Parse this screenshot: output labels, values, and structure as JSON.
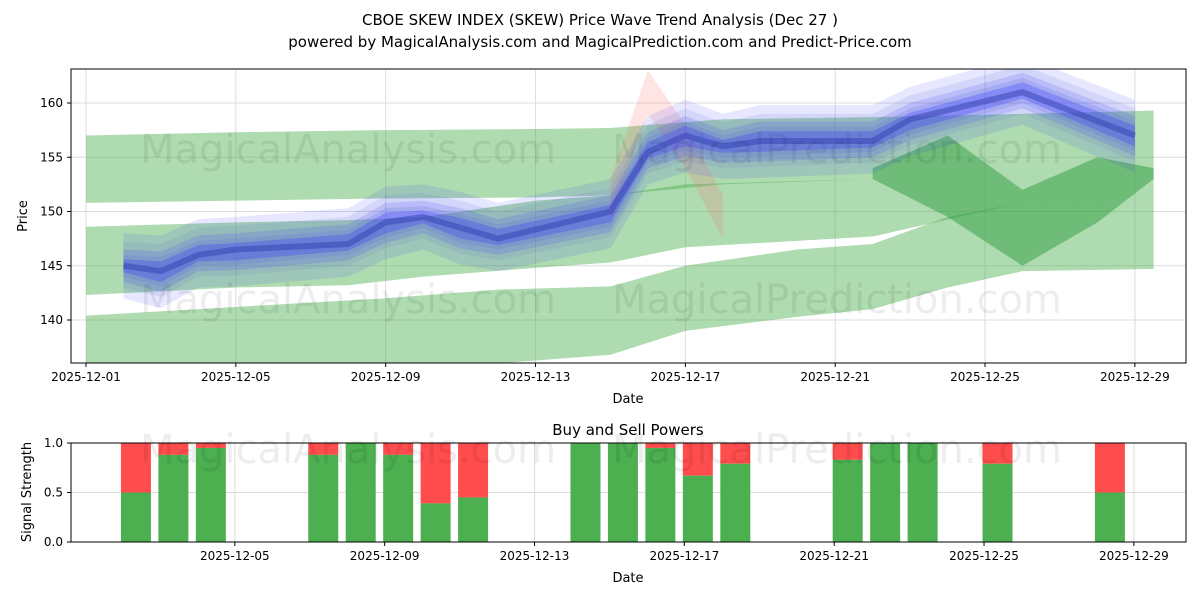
{
  "chart_data": [
    {
      "type": "area",
      "title": "CBOE SKEW INDEX (SKEW) Price Wave Trend Analysis (Dec 27 )",
      "subtitle": "powered by MagicalAnalysis.com and MagicalPrediction.com and Predict-Price.com",
      "xlabel": "Date",
      "ylabel": "Price",
      "xlim": [
        "2025-11-30.6",
        "2025-12-30.1"
      ],
      "ylim": [
        136,
        163.1
      ],
      "grid": true,
      "xticks": [
        "2025-12-01",
        "2025-12-05",
        "2025-12-09",
        "2025-12-13",
        "2025-12-17",
        "2025-12-21",
        "2025-12-25",
        "2025-12-29"
      ],
      "yticks": [
        140,
        145,
        150,
        155,
        160
      ],
      "watermarks": [
        "MagicalAnalysis.com",
        "MagicalPrediction.com"
      ],
      "colors": {
        "band": "#4caf50",
        "price": "#3b3bff",
        "alt": "#ff6b6b"
      },
      "green_bands": [
        {
          "x": [
            1,
            5,
            9,
            13,
            15,
            18,
            22,
            26,
            29.5
          ],
          "low": [
            150.8,
            151,
            151.2,
            151.3,
            151.5,
            152.5,
            153,
            153,
            153
          ],
          "high": [
            157,
            157.3,
            157.5,
            157.6,
            157.7,
            158.5,
            158.7,
            159,
            159.3
          ]
        },
        {
          "x": [
            1,
            5,
            8,
            10,
            13,
            15,
            17,
            22,
            26,
            29.5
          ],
          "low": [
            142.3,
            143,
            143.2,
            144,
            144.8,
            145.3,
            146.7,
            147.7,
            150.8,
            151
          ],
          "high": [
            148.6,
            149,
            149.2,
            149.5,
            151,
            151.5,
            152.5,
            153,
            153,
            153
          ]
        },
        {
          "x": [
            1,
            5,
            9,
            12,
            15,
            17,
            20,
            22,
            24,
            26,
            29.5
          ],
          "low": [
            136,
            135.5,
            135.5,
            136,
            136.8,
            139,
            140.3,
            141,
            143,
            144.5,
            144.7
          ],
          "high": [
            140.4,
            141.2,
            142,
            142.8,
            143.1,
            145,
            146.5,
            147,
            149.5,
            150.8,
            151
          ]
        }
      ],
      "price": {
        "x": [
          2,
          3,
          4,
          5,
          8,
          9,
          10,
          11,
          12,
          15,
          16,
          17,
          18,
          19,
          22,
          23,
          26,
          29
        ],
        "y": [
          145,
          144.5,
          146,
          146.5,
          147,
          149,
          149.5,
          148.5,
          147.5,
          150,
          155.5,
          157,
          156,
          156.5,
          156.5,
          158.5,
          161,
          157
        ]
      },
      "alt_peak": {
        "x": [
          15,
          16,
          17,
          18
        ],
        "y": [
          153,
          163,
          158,
          151.5
        ]
      }
    },
    {
      "type": "bar",
      "title": "Buy and Sell Powers",
      "xlabel": "Date",
      "ylabel": "Signal Strength",
      "ylim": [
        0,
        1
      ],
      "yticks": [
        "0.0",
        "0.5",
        "1.0"
      ],
      "xticks": [
        "2025-12-05",
        "2025-12-09",
        "2025-12-13",
        "2025-12-17",
        "2025-12-21",
        "2025-12-25",
        "2025-12-29"
      ],
      "colors": {
        "buy": "#4caf50",
        "sell": "#ff4c4c"
      },
      "dates": [
        2,
        3,
        4,
        7,
        8,
        9,
        10,
        11,
        14,
        15,
        16,
        17,
        18,
        21,
        22,
        23,
        25,
        28
      ],
      "buy": [
        0.5,
        0.88,
        0.95,
        0.88,
        1.0,
        0.88,
        0.39,
        0.45,
        1.0,
        1.0,
        0.95,
        0.67,
        0.79,
        0.83,
        1.0,
        1.0,
        0.79,
        0.5
      ]
    }
  ]
}
